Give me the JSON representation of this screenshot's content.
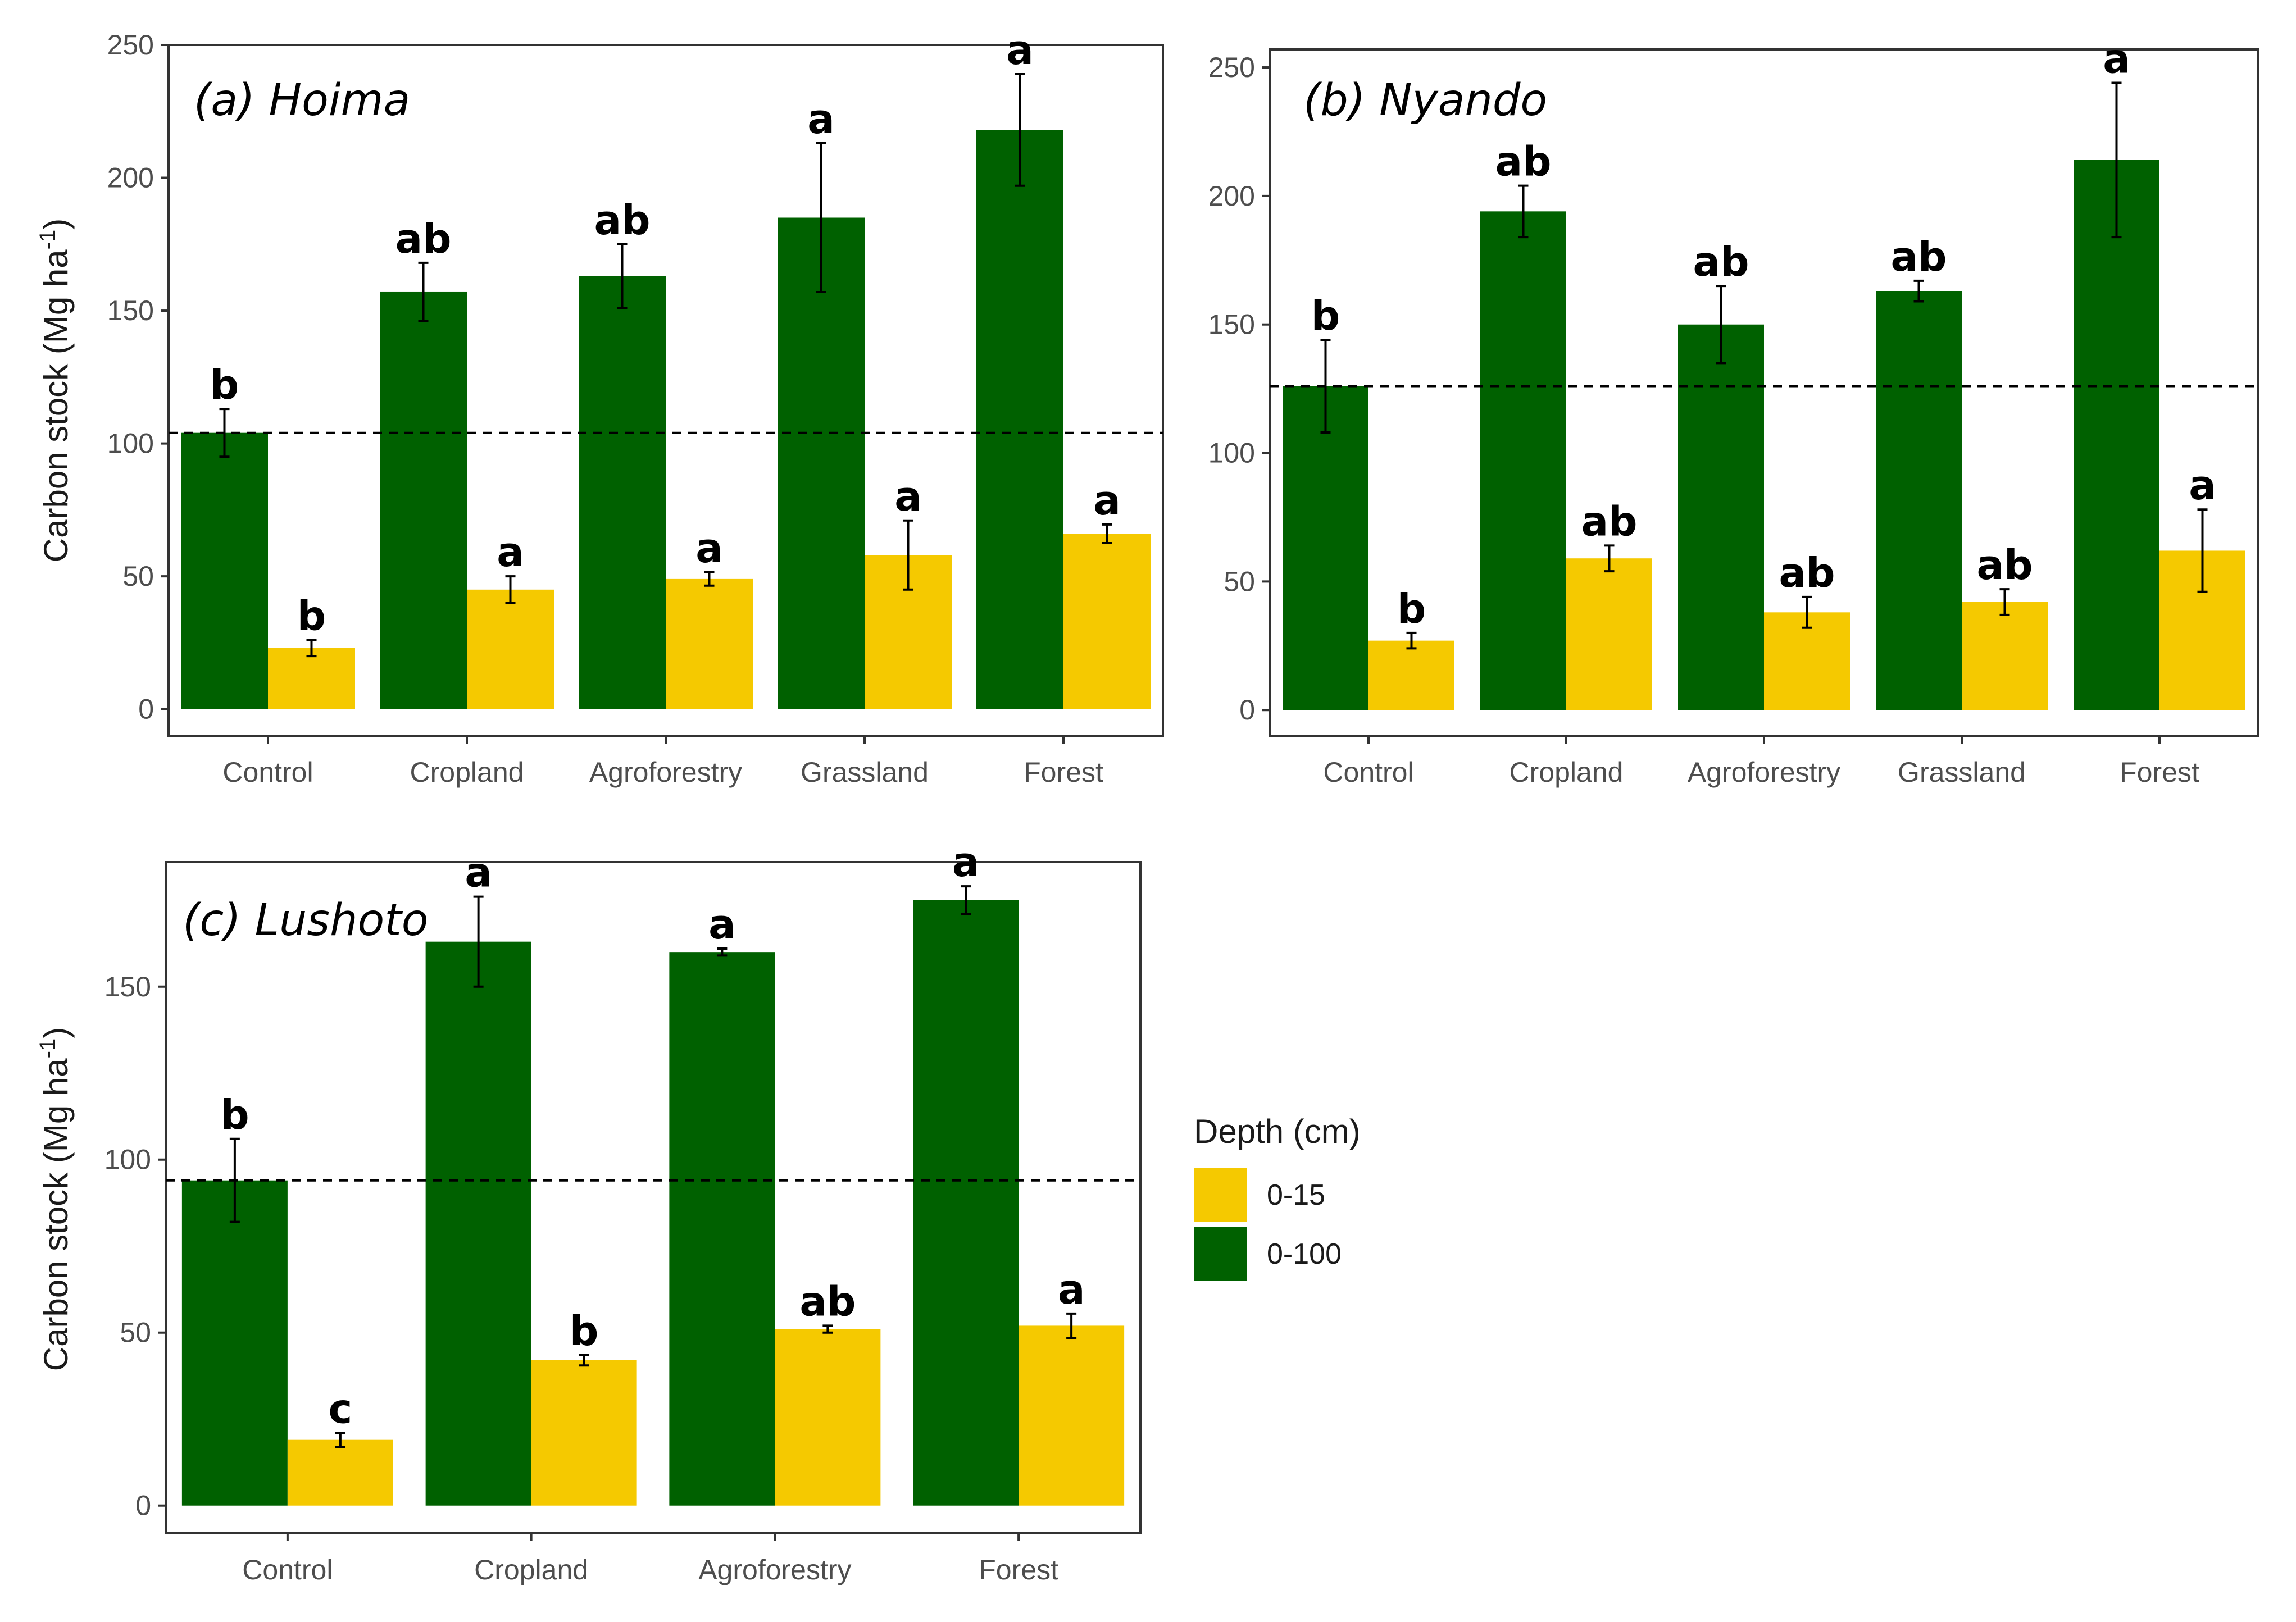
{
  "legend": {
    "title": "Depth (cm)",
    "items": [
      {
        "label": "0-15",
        "color": "#F5C900"
      },
      {
        "label": "0-100",
        "color": "#006100"
      }
    ]
  },
  "chart_data": [
    {
      "type": "bar",
      "title": "(a) Hoima",
      "xlabel": "",
      "ylabel_main": "Carbon stock (Mg ha",
      "ylabel_sup": "-1",
      "ylabel_close": ")",
      "categories": [
        "Control",
        "Cropland",
        "Agroforestry",
        "Grassland",
        "Forest"
      ],
      "ylim": [
        -10,
        250
      ],
      "yticks": [
        0,
        50,
        100,
        150,
        200,
        250
      ],
      "reference_line": 104,
      "series": [
        {
          "name": "0-100",
          "color": "#006100",
          "values": [
            104,
            157,
            163,
            185,
            218
          ],
          "errors": [
            9,
            11,
            12,
            28,
            21
          ],
          "letters": [
            "b",
            "ab",
            "ab",
            "a",
            "a"
          ]
        },
        {
          "name": "0-15",
          "color": "#F5C900",
          "values": [
            23,
            45,
            49,
            58,
            66
          ],
          "errors": [
            3,
            5,
            2.5,
            13,
            3.5
          ],
          "letters": [
            "b",
            "a",
            "a",
            "a",
            "a"
          ]
        }
      ]
    },
    {
      "type": "bar",
      "title": "(b) Nyando",
      "xlabel": "",
      "ylabel_main": "",
      "ylabel_sup": "",
      "ylabel_close": "",
      "categories": [
        "Control",
        "Cropland",
        "Agroforestry",
        "Grassland",
        "Forest"
      ],
      "ylim": [
        -10,
        257
      ],
      "yticks": [
        0,
        50,
        100,
        150,
        200,
        250
      ],
      "reference_line": 126,
      "series": [
        {
          "name": "0-100",
          "color": "#006100",
          "values": [
            126,
            194,
            150,
            163,
            214
          ],
          "errors": [
            18,
            10,
            15,
            4,
            30
          ],
          "letters": [
            "b",
            "ab",
            "ab",
            "ab",
            "a"
          ]
        },
        {
          "name": "0-15",
          "color": "#F5C900",
          "values": [
            27,
            59,
            38,
            42,
            62
          ],
          "errors": [
            3,
            5,
            6,
            5,
            16
          ],
          "letters": [
            "b",
            "ab",
            "ab",
            "ab",
            "a"
          ]
        }
      ]
    },
    {
      "type": "bar",
      "title": "(c) Lushoto",
      "xlabel": "",
      "ylabel_main": "Carbon stock (Mg ha",
      "ylabel_sup": "-1",
      "ylabel_close": ")",
      "categories": [
        "Control",
        "Cropland",
        "Agroforestry",
        "Forest"
      ],
      "ylim": [
        -8,
        186
      ],
      "yticks": [
        0,
        50,
        100,
        150
      ],
      "reference_line": 94,
      "series": [
        {
          "name": "0-100",
          "color": "#006100",
          "values": [
            94,
            163,
            160,
            175
          ],
          "errors": [
            12,
            13,
            1,
            4
          ],
          "letters": [
            "b",
            "a",
            "a",
            "a"
          ]
        },
        {
          "name": "0-15",
          "color": "#F5C900",
          "values": [
            19,
            42,
            51,
            52
          ],
          "errors": [
            2,
            1.5,
            1,
            3.5
          ],
          "letters": [
            "c",
            "b",
            "ab",
            "a"
          ]
        }
      ]
    }
  ]
}
